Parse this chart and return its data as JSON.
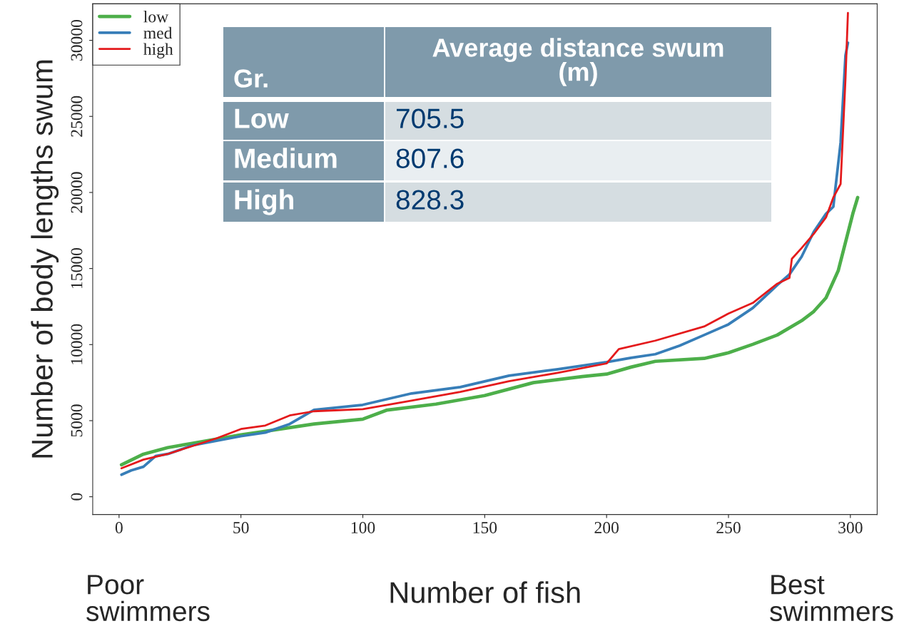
{
  "chart_data": {
    "type": "line",
    "xlabel": "Number of fish",
    "ylabel": "Number of body lengths swum",
    "xlim": [
      -10.8,
      311
    ],
    "ylim": [
      -1170,
      32400
    ],
    "xticks": [
      0,
      50,
      100,
      150,
      200,
      250,
      300
    ],
    "yticks": [
      0,
      5000,
      10000,
      15000,
      20000,
      25000,
      30000
    ],
    "grid": false,
    "legend": "top left",
    "marker": "none",
    "line_style": "solid",
    "series": [
      {
        "name": "low",
        "color": "#4daf4a",
        "x": [
          1,
          10,
          20,
          30,
          50,
          60,
          80,
          100,
          110,
          130,
          150,
          170,
          190,
          200,
          210,
          220,
          240,
          250,
          260,
          270,
          280,
          285,
          290,
          295,
          298,
          301,
          303
        ],
        "values": [
          2100,
          2800,
          3230,
          3510,
          4070,
          4300,
          4780,
          5100,
          5700,
          6090,
          6650,
          7500,
          7900,
          8060,
          8520,
          8900,
          9090,
          9460,
          10020,
          10630,
          11570,
          12180,
          13070,
          14850,
          16720,
          18600,
          19670
        ]
      },
      {
        "name": "med",
        "color": "#377eb8",
        "x": [
          1,
          5,
          10,
          15,
          20,
          30,
          50,
          60,
          70,
          80,
          100,
          120,
          140,
          160,
          180,
          200,
          210,
          220,
          230,
          240,
          250,
          260,
          270,
          275,
          280,
          285,
          290,
          293,
          296,
          298,
          299
        ],
        "values": [
          1450,
          1730,
          1970,
          2670,
          2810,
          3370,
          3980,
          4220,
          4780,
          5710,
          6040,
          6790,
          7210,
          7960,
          8380,
          8850,
          9130,
          9370,
          9930,
          10630,
          11330,
          12410,
          13910,
          14610,
          15780,
          17420,
          18600,
          19060,
          23280,
          29000,
          29840
        ]
      },
      {
        "name": "high",
        "color": "#e41a1c",
        "x": [
          1,
          10,
          20,
          40,
          50,
          60,
          70,
          80,
          100,
          120,
          140,
          160,
          180,
          200,
          205,
          220,
          240,
          250,
          260,
          270,
          275,
          276,
          280,
          285,
          290,
          293,
          296,
          298,
          299
        ],
        "values": [
          1870,
          2440,
          2810,
          3840,
          4450,
          4680,
          5340,
          5620,
          5760,
          6320,
          6890,
          7590,
          8150,
          8760,
          9700,
          10260,
          11190,
          12040,
          12740,
          14000,
          14380,
          15640,
          16350,
          17280,
          18360,
          19670,
          20560,
          27490,
          31800
        ]
      }
    ],
    "annotations": [
      "Gr.",
      "Average distance swum\n(m)",
      "Low",
      "705.5",
      "Medium",
      "807.6",
      "High",
      "828.3",
      "Poor\nswimmers",
      "Best\nswimmers"
    ]
  }
}
